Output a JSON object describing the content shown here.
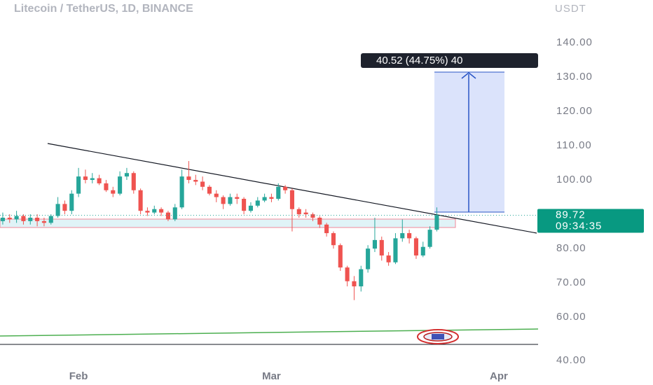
{
  "chart_data": {
    "type": "candlestick",
    "title": "Litecoin / TetherUS, 1D, BINANCE",
    "y_axis_label": "USDT",
    "x": [
      0,
      1,
      2,
      3,
      4,
      5,
      6,
      7,
      8,
      9,
      10,
      11,
      12,
      13,
      14,
      15,
      16,
      17,
      18,
      19,
      20,
      21,
      22,
      23,
      24,
      25,
      26,
      27,
      28,
      29,
      30,
      31,
      32,
      33,
      34,
      35,
      36,
      37,
      38,
      39,
      40,
      41,
      42,
      43,
      44,
      45,
      46,
      47,
      48,
      49,
      50,
      51,
      52,
      53,
      54,
      55,
      56,
      57,
      58,
      59,
      60,
      61,
      62,
      63
    ],
    "open": [
      88,
      89,
      88.5,
      89.5,
      88,
      89,
      88,
      87.5,
      89.5,
      93,
      91,
      96,
      101,
      100,
      100.5,
      99,
      97,
      96,
      101,
      102,
      97,
      91,
      90.5,
      91.5,
      90.5,
      88.5,
      92,
      101,
      100,
      99.5,
      98,
      96,
      95,
      93,
      95,
      94.5,
      91,
      92.5,
      94,
      95,
      94.5,
      98,
      97,
      91.5,
      90.5,
      90,
      89,
      87,
      84.5,
      81,
      74.5,
      70.5,
      69,
      74,
      80,
      82.5,
      78,
      76,
      83,
      84.5,
      83,
      78,
      80.5,
      85.5
    ],
    "high": [
      90.5,
      90,
      91,
      90,
      90,
      90,
      89,
      90,
      95,
      94,
      97,
      103.5,
      103,
      102,
      101.5,
      100,
      98,
      102.5,
      103.5,
      102.5,
      97.5,
      92,
      92.5,
      92,
      91,
      93,
      103,
      105.5,
      101.5,
      101,
      98.5,
      97,
      95.5,
      96,
      96,
      95,
      93.5,
      95,
      96,
      96,
      99,
      98.5,
      97.5,
      92,
      91.5,
      90.5,
      89.5,
      87.5,
      85,
      81.5,
      75,
      72,
      75,
      81,
      89,
      83.5,
      79,
      84.5,
      88.5,
      85.5,
      83.5,
      82,
      86.5,
      92
    ],
    "low": [
      87,
      87.5,
      87.5,
      87,
      87,
      86.5,
      86.5,
      87,
      89,
      90,
      90,
      95,
      99,
      99,
      98.5,
      96.5,
      95,
      95.5,
      100,
      96,
      90,
      89.5,
      90,
      89.5,
      88,
      88,
      91.5,
      99,
      98.5,
      97,
      95.5,
      93.5,
      91.5,
      92.5,
      93,
      90,
      90.5,
      92,
      93.5,
      93.5,
      94,
      96,
      85,
      89,
      89,
      88,
      86,
      83.5,
      80,
      73.5,
      69,
      65,
      67.5,
      73,
      79,
      76.5,
      75,
      75.5,
      82,
      81.5,
      77,
      77.5,
      80,
      85
    ],
    "close": [
      89,
      88.5,
      89.5,
      88,
      89,
      88,
      87.5,
      89.5,
      93,
      91,
      96,
      101,
      100,
      100.5,
      99,
      97,
      96,
      101,
      102,
      97,
      91,
      90.5,
      91.5,
      90.5,
      88.5,
      92,
      101,
      100,
      99.5,
      98,
      96,
      95,
      93,
      95,
      94.5,
      91,
      92.5,
      94,
      95,
      94.5,
      98,
      97,
      91.5,
      90,
      90,
      89,
      87,
      84.5,
      81,
      74.5,
      70.5,
      69,
      74,
      80,
      82.5,
      78,
      76,
      83,
      84.5,
      83,
      78,
      80.5,
      85.5,
      89.72
    ],
    "up_color": "#26a69a",
    "down_color": "#ef5350",
    "xlim": [
      -0.4,
      77.7
    ],
    "xticks": [
      {
        "value": 11,
        "label": "Feb"
      },
      {
        "value": 39,
        "label": "Mar"
      },
      {
        "value": 72,
        "label": "Apr"
      }
    ],
    "ylim": [
      52.1,
      152.4
    ],
    "yticks": [
      {
        "value": 40,
        "label": "40.00"
      },
      {
        "value": 60,
        "label": "60.00"
      },
      {
        "value": 70,
        "label": "70.00"
      },
      {
        "value": 80,
        "label": "80.00"
      },
      {
        "value": 100,
        "label": "100.00"
      },
      {
        "value": 110,
        "label": "110.00"
      },
      {
        "value": 120,
        "label": "120.00"
      },
      {
        "value": 130,
        "label": "130.00"
      },
      {
        "value": 140,
        "label": "140.00"
      }
    ],
    "last_price": 89.72,
    "countdown": "09:34:35",
    "measure_label": "40.52 (44.75%) 40"
  }
}
